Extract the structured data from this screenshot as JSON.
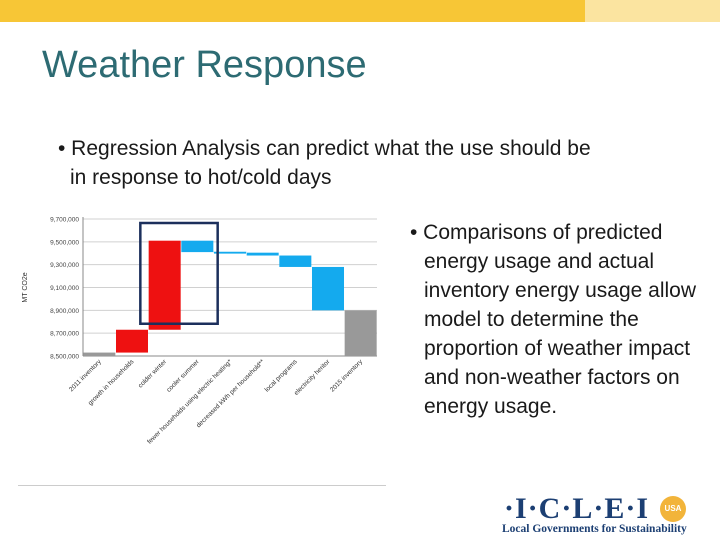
{
  "slide": {
    "title": "Weather Response",
    "bullet1_line1": "• Regression Analysis can predict what the use should be",
    "bullet1_line2": "in response to hot/cold days",
    "bullet2_first": "• Comparisons of predicted",
    "bullet2_rest": "energy usage and actual inventory energy usage allow model to determine the proportion of weather impact and non-weather factors on energy usage.",
    "colors": {
      "topbar": "#f7c636",
      "title": "#2d6b73"
    }
  },
  "logo": {
    "main": "·I·C·L·E·I",
    "badge": "USA",
    "sub": "Local Governments for Sustainability"
  },
  "chart_data": {
    "type": "bar",
    "subtype": "waterfall",
    "ylabel": "MT CO2e",
    "ylim": [
      8500000,
      9700000
    ],
    "yticks": [
      "9,700,000",
      "9,500,000",
      "9,300,000",
      "9,100,000",
      "8,900,000",
      "8,700,000",
      "8,500,000"
    ],
    "categories": [
      "2011 inventory",
      "growth in households",
      "colder winter",
      "cooler summer",
      "fewer households using electric heating*",
      "decreased kWh per household**",
      "local programs",
      "electricity heritor",
      "2015 inventory"
    ],
    "bars": [
      {
        "low": 8500000,
        "high": 8530000,
        "color": "#999999"
      },
      {
        "low": 8530000,
        "high": 8730000,
        "color": "#ee1111"
      },
      {
        "low": 8730000,
        "high": 9510000,
        "color": "#ee1111"
      },
      {
        "low": 9410000,
        "high": 9510000,
        "color": "#14aaee"
      },
      {
        "low": 9405000,
        "high": 9410000,
        "color": "#14aaee"
      },
      {
        "low": 9380000,
        "high": 9405000,
        "color": "#14aaee"
      },
      {
        "low": 9280000,
        "high": 9380000,
        "color": "#14aaee"
      },
      {
        "low": 8900000,
        "high": 9280000,
        "color": "#14aaee"
      },
      {
        "low": 8500000,
        "high": 8900000,
        "color": "#999999"
      }
    ],
    "highlight": {
      "from_index": 2,
      "to_index": 3,
      "color": "#1c2f5c"
    },
    "grid": true,
    "legend": "none"
  }
}
